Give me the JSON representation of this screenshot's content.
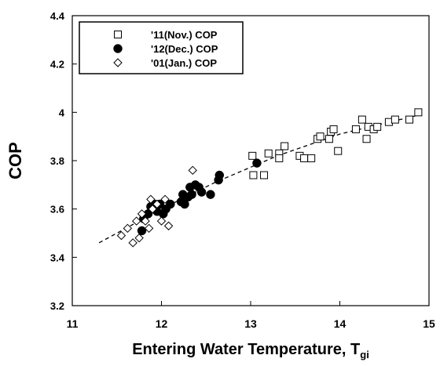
{
  "chart_data": {
    "type": "scatter",
    "xlabel": "Entering Water Temperature, T",
    "xlabel_subscript": "gi",
    "ylabel": "COP",
    "xlim": [
      11,
      15
    ],
    "ylim": [
      3.2,
      4.4
    ],
    "x_ticks": [
      "11",
      "12",
      "13",
      "14",
      "15"
    ],
    "y_ticks": [
      "3.2",
      "3.4",
      "3.6",
      "3.8",
      "4",
      "4.2",
      "4.4"
    ],
    "legend_position": "top-left",
    "series": [
      {
        "name": "'11(Nov.) COP",
        "marker": "open-square",
        "points": [
          [
            13.02,
            3.82
          ],
          [
            13.03,
            3.74
          ],
          [
            13.15,
            3.74
          ],
          [
            13.2,
            3.83
          ],
          [
            13.32,
            3.83
          ],
          [
            13.32,
            3.81
          ],
          [
            13.38,
            3.86
          ],
          [
            13.55,
            3.82
          ],
          [
            13.6,
            3.81
          ],
          [
            13.68,
            3.81
          ],
          [
            13.75,
            3.89
          ],
          [
            13.78,
            3.9
          ],
          [
            13.88,
            3.89
          ],
          [
            13.9,
            3.92
          ],
          [
            13.93,
            3.93
          ],
          [
            13.98,
            3.84
          ],
          [
            14.18,
            3.93
          ],
          [
            14.25,
            3.97
          ],
          [
            14.3,
            3.89
          ],
          [
            14.32,
            3.94
          ],
          [
            14.38,
            3.93
          ],
          [
            14.42,
            3.94
          ],
          [
            14.55,
            3.96
          ],
          [
            14.62,
            3.97
          ],
          [
            14.78,
            3.97
          ],
          [
            14.88,
            4.0
          ]
        ]
      },
      {
        "name": "'12(Dec.) COP",
        "marker": "filled-circle",
        "points": [
          [
            11.78,
            3.51
          ],
          [
            11.8,
            3.56
          ],
          [
            11.85,
            3.58
          ],
          [
            11.88,
            3.61
          ],
          [
            11.92,
            3.62
          ],
          [
            11.95,
            3.59
          ],
          [
            11.98,
            3.62
          ],
          [
            12.02,
            3.58
          ],
          [
            12.05,
            3.6
          ],
          [
            12.1,
            3.62
          ],
          [
            12.22,
            3.63
          ],
          [
            12.24,
            3.66
          ],
          [
            12.26,
            3.62
          ],
          [
            12.3,
            3.65
          ],
          [
            12.32,
            3.69
          ],
          [
            12.34,
            3.66
          ],
          [
            12.38,
            3.7
          ],
          [
            12.42,
            3.69
          ],
          [
            12.45,
            3.67
          ],
          [
            12.55,
            3.66
          ],
          [
            12.64,
            3.72
          ],
          [
            12.65,
            3.74
          ],
          [
            13.07,
            3.79
          ]
        ]
      },
      {
        "name": "'01(Jan.) COP",
        "marker": "open-diamond",
        "points": [
          [
            11.55,
            3.49
          ],
          [
            11.62,
            3.52
          ],
          [
            11.68,
            3.46
          ],
          [
            11.72,
            3.55
          ],
          [
            11.75,
            3.48
          ],
          [
            11.78,
            3.58
          ],
          [
            11.82,
            3.55
          ],
          [
            11.86,
            3.52
          ],
          [
            11.88,
            3.64
          ],
          [
            11.9,
            3.6
          ],
          [
            11.95,
            3.62
          ],
          [
            12.0,
            3.55
          ],
          [
            12.04,
            3.64
          ],
          [
            12.08,
            3.53
          ],
          [
            12.35,
            3.76
          ]
        ]
      }
    ],
    "trendline": {
      "style": "dashed",
      "points": [
        [
          11.3,
          3.46
        ],
        [
          12.0,
          3.6
        ],
        [
          12.6,
          3.71
        ],
        [
          13.3,
          3.82
        ],
        [
          14.0,
          3.91
        ],
        [
          14.9,
          3.99
        ]
      ]
    }
  }
}
